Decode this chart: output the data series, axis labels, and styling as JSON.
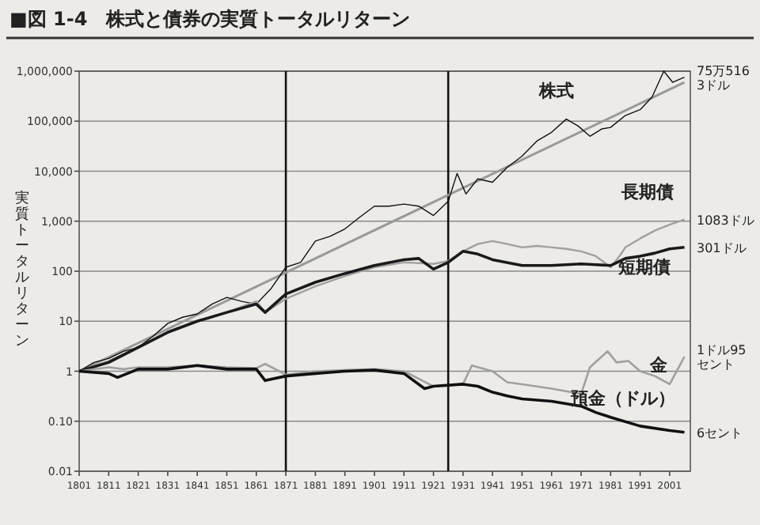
{
  "chart_data": {
    "type": "line",
    "title": "■図 1-4　株式と債券の実質トータルリターン",
    "ylabel": "実質トータルリターン",
    "log": true,
    "grid": "y",
    "xlim": [
      1801,
      2008
    ],
    "ylim": [
      0.01,
      1000000
    ],
    "xticks": [
      1801,
      1811,
      1821,
      1831,
      1841,
      1851,
      1861,
      1871,
      1881,
      1891,
      1901,
      1911,
      1921,
      1931,
      1941,
      1951,
      1961,
      1971,
      1981,
      1991,
      2001
    ],
    "yticks": [
      {
        "value": 0.01,
        "label": "0.01"
      },
      {
        "value": 0.1,
        "label": "0.10"
      },
      {
        "value": 1,
        "label": "1"
      },
      {
        "value": 10,
        "label": "10"
      },
      {
        "value": 100,
        "label": "100"
      },
      {
        "value": 1000,
        "label": "1,000"
      },
      {
        "value": 10000,
        "label": "10,000"
      },
      {
        "value": 100000,
        "label": "100,000"
      },
      {
        "value": 1000000,
        "label": "1,000,000"
      }
    ],
    "ref_lines": [
      {
        "axis": "x",
        "value": 1871,
        "color": "#111111"
      },
      {
        "axis": "x",
        "value": 1926,
        "color": "#111111"
      }
    ],
    "series": [
      {
        "type": "line",
        "color": "#999999",
        "x": [
          1801,
          2006
        ],
        "values": [
          1,
          600000
        ]
      },
      {
        "name": "株式",
        "color": "#111111",
        "x": [
          1801,
          1806,
          1811,
          1816,
          1821,
          1826,
          1831,
          1836,
          1841,
          1846,
          1851,
          1856,
          1861,
          1866,
          1871,
          1876,
          1881,
          1886,
          1891,
          1896,
          1901,
          1906,
          1911,
          1916,
          1921,
          1926,
          1929,
          1932,
          1936,
          1941,
          1946,
          1951,
          1956,
          1961,
          1966,
          1970,
          1974,
          1978,
          1981,
          1986,
          1991,
          1995,
          1999,
          2002,
          2006
        ],
        "values": [
          1,
          1.5,
          1.8,
          2.5,
          3,
          5,
          9,
          12,
          14,
          22,
          30,
          25,
          22,
          45,
          120,
          150,
          400,
          500,
          700,
          1200,
          2000,
          2000,
          2200,
          2000,
          1300,
          2500,
          9000,
          3500,
          7000,
          6000,
          12000,
          20000,
          40000,
          60000,
          110000,
          80000,
          50000,
          70000,
          75000,
          130000,
          170000,
          300000,
          1000000,
          600000,
          755163
        ]
      },
      {
        "name": "長期債",
        "color": "#a0a0a0",
        "x": [
          1801,
          1811,
          1821,
          1831,
          1841,
          1851,
          1861,
          1864,
          1871,
          1881,
          1891,
          1901,
          1911,
          1921,
          1926,
          1931,
          1936,
          1941,
          1946,
          1951,
          1956,
          1961,
          1966,
          1971,
          1976,
          1981,
          1984,
          1986,
          1991,
          1996,
          2001,
          2006
        ],
        "values": [
          1,
          1.6,
          3,
          6,
          10,
          15,
          25,
          15,
          28,
          50,
          80,
          120,
          150,
          140,
          160,
          250,
          350,
          400,
          350,
          300,
          320,
          300,
          280,
          250,
          200,
          120,
          200,
          300,
          450,
          650,
          850,
          1083
        ]
      },
      {
        "name": "短期債",
        "color": "#1a1a1a",
        "x": [
          1801,
          1811,
          1821,
          1831,
          1841,
          1851,
          1861,
          1864,
          1871,
          1881,
          1891,
          1901,
          1911,
          1916,
          1921,
          1926,
          1931,
          1936,
          1941,
          1951,
          1961,
          1971,
          1976,
          1981,
          1986,
          1991,
          1996,
          2001,
          2006
        ],
        "values": [
          1,
          1.5,
          3,
          6,
          10,
          15,
          22,
          15,
          35,
          60,
          90,
          130,
          170,
          180,
          110,
          150,
          250,
          220,
          170,
          130,
          130,
          140,
          135,
          130,
          180,
          200,
          230,
          280,
          301
        ]
      },
      {
        "name": "金",
        "color": "#a0a0a0",
        "x": [
          1801,
          1811,
          1816,
          1821,
          1831,
          1841,
          1851,
          1861,
          1864,
          1871,
          1881,
          1891,
          1901,
          1911,
          1921,
          1931,
          1934,
          1941,
          1946,
          1951,
          1961,
          1971,
          1974,
          1980,
          1983,
          1987,
          1991,
          1996,
          2001,
          2006
        ],
        "values": [
          1,
          1.2,
          1.1,
          1.2,
          1.2,
          1.3,
          1.2,
          1.15,
          1.4,
          0.85,
          1,
          1.05,
          1.1,
          1,
          0.5,
          0.55,
          1.3,
          1,
          0.6,
          0.55,
          0.45,
          0.35,
          1.2,
          2.5,
          1.5,
          1.6,
          1,
          0.8,
          0.55,
          1.95
        ]
      },
      {
        "name": "預金（ドル）",
        "color": "#111111",
        "x": [
          1801,
          1811,
          1814,
          1821,
          1831,
          1841,
          1851,
          1861,
          1864,
          1871,
          1881,
          1891,
          1901,
          1911,
          1918,
          1921,
          1931,
          1936,
          1941,
          1946,
          1951,
          1961,
          1971,
          1976,
          1981,
          1991,
          2001,
          2006
        ],
        "values": [
          1,
          0.9,
          0.75,
          1.1,
          1.1,
          1.3,
          1.1,
          1.1,
          0.65,
          0.8,
          0.9,
          1,
          1.05,
          0.9,
          0.45,
          0.5,
          0.55,
          0.5,
          0.38,
          0.32,
          0.28,
          0.25,
          0.2,
          0.15,
          0.12,
          0.08,
          0.065,
          0.06
        ]
      }
    ],
    "annotations": [
      "75万5163ドル",
      "1083ドル",
      "301ドル",
      "1ドル95セント",
      "6セント"
    ]
  }
}
